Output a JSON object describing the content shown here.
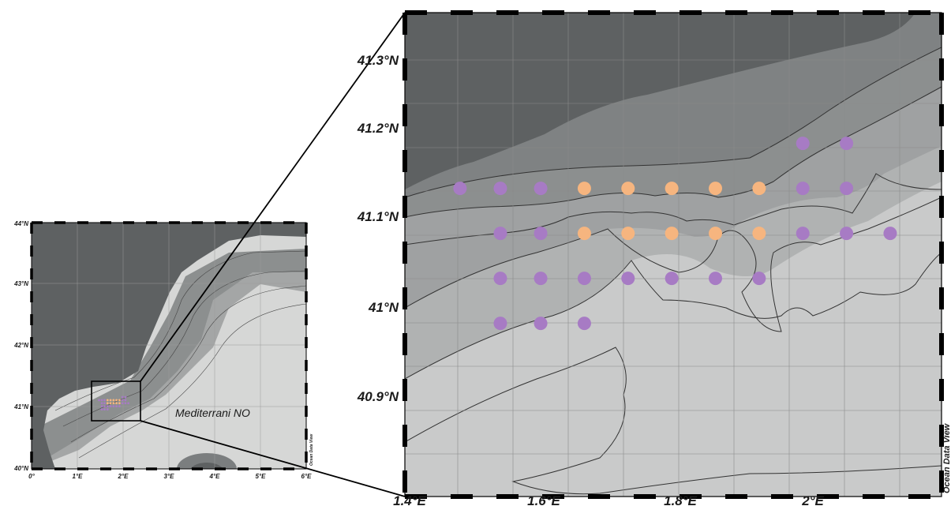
{
  "overview_map": {
    "lat_labels": [
      "44°N",
      "43°N",
      "42°N",
      "41°N",
      "40°N"
    ],
    "lon_labels": [
      "0°",
      "1°E",
      "2°E",
      "3°E",
      "4°E",
      "5°E",
      "6°E"
    ],
    "region_label": "Mediterrani NO",
    "credit": "Ocean Data View"
  },
  "zoom_map": {
    "lat_labels": [
      "41.3°N",
      "41.2°N",
      "41.1°N",
      "41°N",
      "40.9°N"
    ],
    "lon_labels": [
      "1.4°E",
      "1.6°E",
      "1.8°E",
      "2°E"
    ],
    "credit": "Ocean Data View",
    "extent": {
      "lon": [
        1.4,
        2.38
      ],
      "lat": [
        40.8,
        41.33
      ]
    }
  },
  "colors": {
    "station_purple": "#a77bc4",
    "station_orange": "#f6b57f",
    "land": "#5e6162",
    "sea_shallow": "#7f8283",
    "sea_mid": "#9fa1a2",
    "sea_deep": "#c9caca"
  },
  "stations": [
    {
      "lon": 1.475,
      "lat": 41.117,
      "type": "purple"
    },
    {
      "lon": 1.535,
      "lat": 41.117,
      "type": "purple"
    },
    {
      "lon": 1.595,
      "lat": 41.117,
      "type": "purple"
    },
    {
      "lon": 1.66,
      "lat": 41.117,
      "type": "orange"
    },
    {
      "lon": 1.725,
      "lat": 41.117,
      "type": "orange"
    },
    {
      "lon": 1.79,
      "lat": 41.117,
      "type": "orange"
    },
    {
      "lon": 1.855,
      "lat": 41.117,
      "type": "orange"
    },
    {
      "lon": 1.92,
      "lat": 41.117,
      "type": "orange"
    },
    {
      "lon": 1.985,
      "lat": 41.117,
      "type": "purple"
    },
    {
      "lon": 2.05,
      "lat": 41.117,
      "type": "purple"
    },
    {
      "lon": 1.985,
      "lat": 41.167,
      "type": "purple"
    },
    {
      "lon": 2.05,
      "lat": 41.167,
      "type": "purple"
    },
    {
      "lon": 1.535,
      "lat": 41.067,
      "type": "purple"
    },
    {
      "lon": 1.595,
      "lat": 41.067,
      "type": "purple"
    },
    {
      "lon": 1.66,
      "lat": 41.067,
      "type": "orange"
    },
    {
      "lon": 1.725,
      "lat": 41.067,
      "type": "orange"
    },
    {
      "lon": 1.79,
      "lat": 41.067,
      "type": "orange"
    },
    {
      "lon": 1.855,
      "lat": 41.067,
      "type": "orange"
    },
    {
      "lon": 1.92,
      "lat": 41.067,
      "type": "orange"
    },
    {
      "lon": 1.985,
      "lat": 41.067,
      "type": "purple"
    },
    {
      "lon": 2.05,
      "lat": 41.067,
      "type": "purple"
    },
    {
      "lon": 2.115,
      "lat": 41.067,
      "type": "purple"
    },
    {
      "lon": 1.535,
      "lat": 41.017,
      "type": "purple"
    },
    {
      "lon": 1.595,
      "lat": 41.017,
      "type": "purple"
    },
    {
      "lon": 1.66,
      "lat": 41.017,
      "type": "purple"
    },
    {
      "lon": 1.725,
      "lat": 41.017,
      "type": "purple"
    },
    {
      "lon": 1.79,
      "lat": 41.017,
      "type": "purple"
    },
    {
      "lon": 1.855,
      "lat": 41.017,
      "type": "purple"
    },
    {
      "lon": 1.92,
      "lat": 41.017,
      "type": "purple"
    },
    {
      "lon": 1.535,
      "lat": 40.967,
      "type": "purple"
    },
    {
      "lon": 1.595,
      "lat": 40.967,
      "type": "purple"
    },
    {
      "lon": 1.66,
      "lat": 40.967,
      "type": "purple"
    }
  ]
}
